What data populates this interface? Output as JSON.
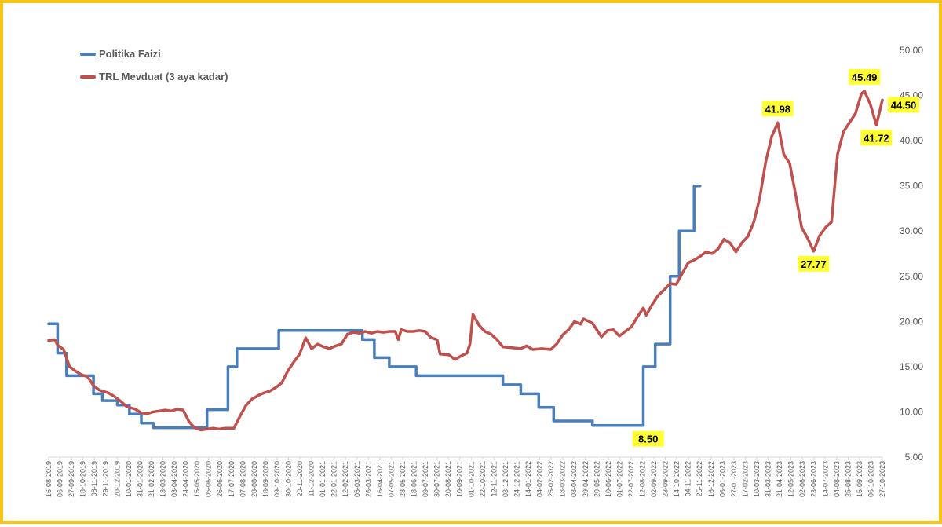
{
  "chart_data": {
    "type": "line",
    "title": "",
    "xlabel": "",
    "ylabel": "",
    "ylim": [
      5,
      50
    ],
    "yticks": [
      "5.00",
      "10.00",
      "15.00",
      "20.00",
      "25.00",
      "30.00",
      "35.00",
      "40.00",
      "45.00",
      "50.00"
    ],
    "grid": false,
    "legend_position": "top-left",
    "x_tick_labels": [
      "16-08-2019",
      "06-09-2019",
      "27-09-2019",
      "18-10-2019",
      "08-11-2019",
      "29-11-2019",
      "20-12-2019",
      "10-01-2020",
      "31-01-2020",
      "21-02-2020",
      "13-03-2020",
      "03-04-2020",
      "24-04-2020",
      "15-05-2020",
      "05-06-2020",
      "26-06-2020",
      "17-07-2020",
      "07-08-2020",
      "28-08-2020",
      "18-09-2020",
      "09-10-2020",
      "30-10-2020",
      "20-11-2020",
      "11-12-2020",
      "01-01-2021",
      "22-01-2021",
      "12-02-2021",
      "05-03-2021",
      "26-03-2021",
      "16-04-2021",
      "07-05-2021",
      "28-05-2021",
      "18-06-2021",
      "09-07-2021",
      "30-07-2021",
      "20-08-2021",
      "10-09-2021",
      "01-10-2021",
      "22-10-2021",
      "12-11-2021",
      "03-12-2021",
      "24-12-2021",
      "14-01-2022",
      "04-02-2022",
      "25-02-2022",
      "18-03-2022",
      "08-04-2022",
      "29-04-2022",
      "20-05-2022",
      "10-06-2022",
      "01-07-2022",
      "22-07-2022",
      "12-08-2022",
      "02-09-2022",
      "23-09-2022",
      "14-10-2022",
      "04-11-2022",
      "25-11-2022",
      "16-12-2022",
      "06-01-2023",
      "27-01-2023",
      "17-02-2023",
      "10-03-2023",
      "31-03-2023",
      "21-04-2023",
      "12-05-2023",
      "02-06-2023",
      "23-06-2023",
      "14-07-2023",
      "04-08-2023",
      "25-08-2023",
      "15-09-2023",
      "06-10-2023",
      "27-10-2023"
    ],
    "series": [
      {
        "name": "Politika Faizi",
        "color": "#4a7ebb",
        "points": [
          [
            0,
            19.75
          ],
          [
            3,
            19.75
          ],
          [
            3,
            16.5
          ],
          [
            6,
            16.5
          ],
          [
            6,
            14
          ],
          [
            15,
            14
          ],
          [
            15,
            12
          ],
          [
            18,
            12
          ],
          [
            18,
            11.25
          ],
          [
            23,
            11.25
          ],
          [
            23,
            10.75
          ],
          [
            27,
            10.75
          ],
          [
            27,
            9.75
          ],
          [
            31,
            9.75
          ],
          [
            31,
            8.75
          ],
          [
            35,
            8.75
          ],
          [
            35,
            8.25
          ],
          [
            53,
            8.25
          ],
          [
            53,
            10.25
          ],
          [
            60,
            10.25
          ],
          [
            60,
            15
          ],
          [
            63,
            15
          ],
          [
            63,
            17
          ],
          [
            77,
            17
          ],
          [
            77,
            19
          ],
          [
            105,
            19
          ],
          [
            105,
            18
          ],
          [
            109,
            18
          ],
          [
            109,
            16
          ],
          [
            114,
            16
          ],
          [
            114,
            15
          ],
          [
            123,
            15
          ],
          [
            123,
            14
          ],
          [
            152,
            14
          ],
          [
            152,
            13
          ],
          [
            158,
            13
          ],
          [
            158,
            12
          ],
          [
            164,
            12
          ],
          [
            164,
            10.5
          ],
          [
            169,
            10.5
          ],
          [
            169,
            9
          ],
          [
            182,
            9
          ],
          [
            182,
            8.5
          ],
          [
            199,
            8.5
          ],
          [
            199,
            15
          ],
          [
            203,
            15
          ],
          [
            203,
            17.5
          ],
          [
            208,
            17.5
          ],
          [
            208,
            25
          ],
          [
            211,
            25
          ],
          [
            211,
            30
          ],
          [
            216,
            30
          ],
          [
            216,
            35
          ],
          [
            218,
            35
          ]
        ]
      },
      {
        "name": "TRL Mevduat (3 aya kadar)",
        "color": "#c0504d",
        "points": [
          [
            0,
            17.9
          ],
          [
            2,
            18
          ],
          [
            3,
            17.4
          ],
          [
            5,
            16.9
          ],
          [
            7,
            15
          ],
          [
            9,
            14.5
          ],
          [
            11,
            14.1
          ],
          [
            13,
            13.9
          ],
          [
            15,
            12.9
          ],
          [
            17,
            12.4
          ],
          [
            20,
            12.1
          ],
          [
            22,
            11.7
          ],
          [
            24,
            11.2
          ],
          [
            26,
            10.6
          ],
          [
            29,
            10.3
          ],
          [
            31,
            9.9
          ],
          [
            33,
            9.8
          ],
          [
            35,
            10
          ],
          [
            37,
            10.1
          ],
          [
            39,
            10.2
          ],
          [
            41,
            10.1
          ],
          [
            43,
            10.3
          ],
          [
            45,
            10.2
          ],
          [
            47,
            8.9
          ],
          [
            49,
            8.2
          ],
          [
            51,
            8
          ],
          [
            53,
            8.1
          ],
          [
            55,
            8.2
          ],
          [
            57,
            8.1
          ],
          [
            59,
            8.2
          ],
          [
            62,
            8.2
          ],
          [
            64,
            9.5
          ],
          [
            66,
            10.7
          ],
          [
            68,
            11.4
          ],
          [
            70,
            11.8
          ],
          [
            72,
            12.1
          ],
          [
            74,
            12.3
          ],
          [
            76,
            12.7
          ],
          [
            78,
            13.2
          ],
          [
            80,
            14.5
          ],
          [
            82,
            15.5
          ],
          [
            84,
            16.4
          ],
          [
            86,
            18.2
          ],
          [
            88,
            17
          ],
          [
            90,
            17.5
          ],
          [
            92,
            17.2
          ],
          [
            94,
            17
          ],
          [
            96,
            17.3
          ],
          [
            98,
            17.5
          ],
          [
            100,
            18.6
          ],
          [
            102,
            18.8
          ],
          [
            104,
            18.7
          ],
          [
            106,
            18.9
          ],
          [
            108,
            18.7
          ],
          [
            110,
            18.9
          ],
          [
            112,
            18.8
          ],
          [
            114,
            18.9
          ],
          [
            116,
            18.9
          ],
          [
            117,
            18
          ],
          [
            118,
            19.1
          ],
          [
            120,
            18.9
          ],
          [
            122,
            18.9
          ],
          [
            124,
            19
          ],
          [
            126,
            18.9
          ],
          [
            128,
            18.2
          ],
          [
            130,
            18
          ],
          [
            131,
            16.4
          ],
          [
            134,
            16.3
          ],
          [
            136,
            15.8
          ],
          [
            138,
            16.2
          ],
          [
            140,
            16.5
          ],
          [
            141,
            17.5
          ],
          [
            142,
            20.8
          ],
          [
            144,
            19.6
          ],
          [
            146,
            18.9
          ],
          [
            148,
            18.6
          ],
          [
            150,
            18
          ],
          [
            152,
            17.2
          ],
          [
            155,
            17.1
          ],
          [
            158,
            17
          ],
          [
            160,
            17.3
          ],
          [
            162,
            16.9
          ],
          [
            165,
            17
          ],
          [
            168,
            16.9
          ],
          [
            170,
            17.5
          ],
          [
            172,
            18.5
          ],
          [
            174,
            19.1
          ],
          [
            176,
            20
          ],
          [
            178,
            19.7
          ],
          [
            179,
            20.3
          ],
          [
            182,
            19.8
          ],
          [
            185,
            18.3
          ],
          [
            187,
            19
          ],
          [
            189,
            19.1
          ],
          [
            191,
            18.4
          ],
          [
            193,
            18.9
          ],
          [
            195,
            19.4
          ],
          [
            197,
            20.5
          ],
          [
            199,
            21.5
          ],
          [
            200,
            20.7
          ],
          [
            202,
            21.9
          ],
          [
            204,
            22.9
          ],
          [
            206,
            23.5
          ],
          [
            208,
            24.2
          ],
          [
            210,
            24.1
          ],
          [
            212,
            25.3
          ],
          [
            214,
            26.5
          ],
          [
            216,
            26.8
          ],
          [
            218,
            27.2
          ],
          [
            220,
            27.7
          ],
          [
            222,
            27.5
          ],
          [
            224,
            28
          ],
          [
            226,
            29.1
          ],
          [
            228,
            28.7
          ],
          [
            230,
            27.7
          ],
          [
            232,
            28.7
          ],
          [
            234,
            29.4
          ],
          [
            236,
            31
          ],
          [
            238,
            33.7
          ],
          [
            240,
            37.7
          ],
          [
            242,
            40.5
          ],
          [
            244,
            41.98
          ],
          [
            246,
            38.5
          ],
          [
            248,
            37.5
          ],
          [
            250,
            34
          ],
          [
            252,
            30.4
          ],
          [
            254,
            29.2
          ],
          [
            256,
            27.77
          ],
          [
            258,
            29.5
          ],
          [
            260,
            30.4
          ],
          [
            262,
            31
          ],
          [
            264,
            38.5
          ],
          [
            266,
            41
          ],
          [
            268,
            42
          ],
          [
            270,
            43
          ],
          [
            272,
            45.2
          ],
          [
            273,
            45.49
          ],
          [
            275,
            44
          ],
          [
            277,
            41.72
          ],
          [
            279,
            44.5
          ]
        ]
      }
    ],
    "annotations": [
      {
        "series": 1,
        "label": "41.98",
        "x": 244,
        "y": 41.98,
        "place": "above"
      },
      {
        "series": 1,
        "label": "27.77",
        "x": 256,
        "y": 27.77,
        "place": "below"
      },
      {
        "series": 1,
        "label": "45.49",
        "x": 273,
        "y": 45.49,
        "place": "above"
      },
      {
        "series": 1,
        "label": "41.72",
        "x": 277,
        "y": 41.72,
        "place": "below"
      },
      {
        "series": 1,
        "label": "44.50",
        "x": 279,
        "y": 44.5,
        "place": "right"
      },
      {
        "series": 0,
        "label": "8.50",
        "x": 198,
        "y": 8.5,
        "place": "below"
      }
    ],
    "annotation_color": "#ffff33"
  }
}
